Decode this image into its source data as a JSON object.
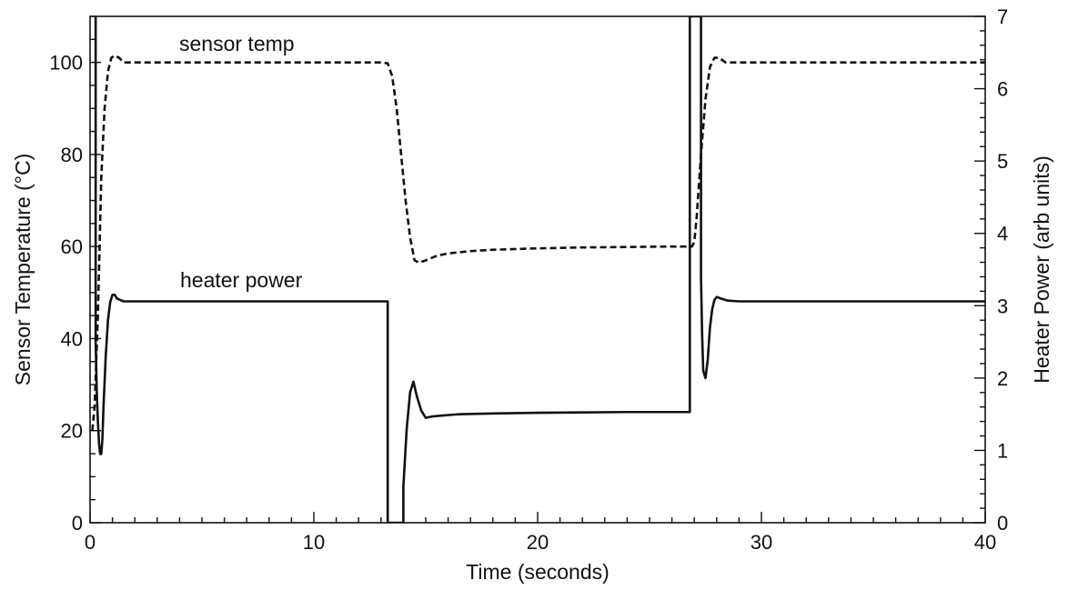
{
  "chart_data": {
    "type": "line",
    "xlabel": "Time (seconds)",
    "ylabel": "Sensor Temperature (°C)",
    "y2label": "Heater Power (arb units)",
    "xlim": [
      0,
      40
    ],
    "ylim": [
      0,
      110
    ],
    "y2lim": [
      0,
      7
    ],
    "xticks": [
      0,
      10,
      20,
      30,
      40
    ],
    "yticks": [
      0,
      20,
      40,
      60,
      80,
      100
    ],
    "y2ticks": [
      0,
      1,
      2,
      3,
      4,
      5,
      6,
      7
    ],
    "grid": false,
    "legend": "none",
    "series": [
      {
        "name": "sensor temp",
        "axis": "left",
        "style": "dashed",
        "x": [
          0.1,
          0.2,
          0.35,
          0.5,
          0.65,
          0.8,
          0.95,
          1.1,
          1.3,
          1.5,
          2.0,
          5.0,
          10.0,
          13.0,
          13.3,
          13.5,
          13.7,
          13.9,
          14.1,
          14.3,
          14.5,
          14.7,
          15.0,
          15.5,
          16.0,
          17.0,
          18.0,
          20.0,
          22.0,
          24.0,
          26.0,
          26.9,
          27.0,
          27.1,
          27.3,
          27.5,
          27.7,
          27.9,
          28.1,
          28.4,
          29.0,
          32.0,
          36.0,
          40.0
        ],
        "values": [
          20,
          25,
          45,
          75,
          90,
          98,
          101,
          101.5,
          101,
          100,
          100,
          100,
          100,
          100,
          99.8,
          97,
          90,
          80,
          70,
          62,
          57,
          56.5,
          57,
          58,
          58.5,
          59,
          59.3,
          59.6,
          59.8,
          59.9,
          60,
          60,
          61,
          66,
          80,
          92,
          99,
          101,
          101,
          100,
          100,
          100,
          100,
          100
        ]
      },
      {
        "name": "heater power",
        "axis": "right",
        "style": "solid",
        "x": [
          0.25,
          0.25,
          0.3,
          0.35,
          0.4,
          0.45,
          0.5,
          0.55,
          0.6,
          0.7,
          0.8,
          0.9,
          1.0,
          1.1,
          1.2,
          1.35,
          1.5,
          1.75,
          2.0,
          5.0,
          10.0,
          13.3,
          13.3,
          14.0,
          14.0,
          14.15,
          14.3,
          14.45,
          14.6,
          14.8,
          15.0,
          15.3,
          15.7,
          16.5,
          18.0,
          20.0,
          24.0,
          26.8,
          26.8,
          27.3,
          27.3,
          27.35,
          27.4,
          27.5,
          27.6,
          27.7,
          27.8,
          27.9,
          28.0,
          28.2,
          28.5,
          29.0,
          32.0,
          36.0,
          40.0
        ],
        "values": [
          7,
          2.5,
          1.8,
          1.4,
          1.1,
          0.95,
          0.95,
          1.15,
          1.6,
          2.3,
          2.8,
          3.05,
          3.15,
          3.15,
          3.1,
          3.08,
          3.06,
          3.06,
          3.06,
          3.06,
          3.06,
          3.06,
          0,
          0,
          0.5,
          1.3,
          1.8,
          1.95,
          1.75,
          1.55,
          1.45,
          1.47,
          1.48,
          1.5,
          1.51,
          1.52,
          1.53,
          1.53,
          7,
          7,
          3.4,
          2.6,
          2.1,
          2.0,
          2.25,
          2.7,
          2.95,
          3.08,
          3.12,
          3.1,
          3.07,
          3.06,
          3.06,
          3.06,
          3.06
        ]
      }
    ]
  }
}
